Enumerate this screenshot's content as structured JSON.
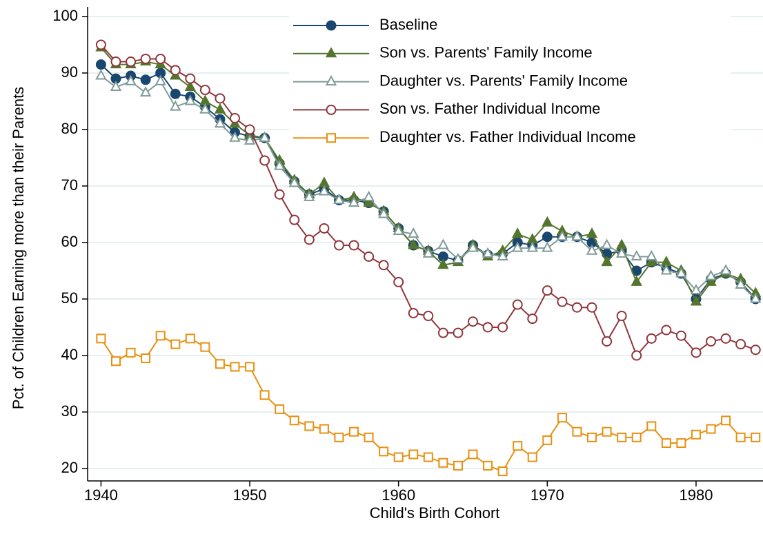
{
  "chart_data": {
    "type": "line",
    "x_label": "Child's Birth Cohort",
    "y_label": "Pct. of Children Earning more than their Parents",
    "x": [
      1940,
      1941,
      1942,
      1943,
      1944,
      1945,
      1946,
      1947,
      1948,
      1949,
      1950,
      1951,
      1952,
      1953,
      1954,
      1955,
      1956,
      1957,
      1958,
      1959,
      1960,
      1961,
      1962,
      1963,
      1964,
      1965,
      1966,
      1967,
      1968,
      1969,
      1970,
      1971,
      1972,
      1973,
      1974,
      1975,
      1976,
      1977,
      1978,
      1979,
      1980,
      1981,
      1982,
      1983,
      1984
    ],
    "xlim": [
      1939.1,
      1984.5
    ],
    "xticks": [
      1940,
      1950,
      1960,
      1970,
      1980
    ],
    "ylim": [
      17.8,
      101.7
    ],
    "yticks": [
      20,
      30,
      40,
      50,
      60,
      70,
      80,
      90,
      100
    ],
    "grid": true,
    "legend": "top",
    "series": [
      {
        "name": "Baseline",
        "color": "#1a476f",
        "marker": "circle-filled",
        "values": [
          91.5,
          89,
          89.5,
          88.8,
          90,
          86.3,
          85.8,
          84,
          81.8,
          79.5,
          78.8,
          78.5,
          74,
          70.8,
          68.5,
          69.5,
          67.5,
          67.5,
          67,
          65.5,
          62.5,
          59.5,
          58.5,
          57.5,
          56.8,
          59.5,
          57.8,
          58,
          60,
          59.5,
          61,
          61,
          61,
          60,
          58,
          58.5,
          55,
          56.5,
          55.5,
          54.5,
          50,
          53.5,
          54.5,
          53,
          50
        ]
      },
      {
        "name": "Son vs. Parents' Family Income",
        "color": "#55752f",
        "marker": "triangle-filled",
        "values": [
          94.5,
          91.5,
          91.5,
          92,
          91.5,
          89.5,
          87.5,
          85,
          83.5,
          81,
          79,
          78.5,
          74.5,
          71,
          68.5,
          70.5,
          67.5,
          68,
          67,
          65.5,
          62.5,
          59.5,
          58.5,
          56,
          56.5,
          59.5,
          57.5,
          58.5,
          61.5,
          60.5,
          63.5,
          62,
          61,
          61.5,
          56.5,
          59.5,
          53,
          56.5,
          56.5,
          55,
          49.5,
          53,
          54.5,
          53.5,
          51
        ]
      },
      {
        "name": "Daughter vs. Parents' Family Income",
        "color": "#7f9a98",
        "marker": "triangle-hollow",
        "values": [
          89.5,
          87.5,
          88.5,
          86.5,
          88.5,
          84,
          85,
          83.5,
          81,
          78.5,
          78,
          78.5,
          73.5,
          70.5,
          68,
          69,
          67.5,
          67,
          68,
          65,
          62,
          61.5,
          58,
          59.5,
          57,
          59,
          58,
          57.5,
          59,
          59,
          59,
          61,
          61,
          58.5,
          59.5,
          58,
          57.5,
          57.5,
          55,
          54.5,
          51.5,
          54,
          55,
          52.5,
          50
        ]
      },
      {
        "name": "Son vs. Father Individual Income",
        "color": "#90353b",
        "marker": "circle-hollow",
        "values": [
          95,
          92,
          92,
          92.5,
          92.5,
          90.5,
          89,
          87,
          85.5,
          82,
          80,
          74.5,
          68.5,
          64,
          60.5,
          62.5,
          59.5,
          59.5,
          57.5,
          56,
          53,
          47.5,
          47,
          44,
          44,
          46,
          45,
          45,
          49,
          46.5,
          51.5,
          49.5,
          48.5,
          48.5,
          42.5,
          47,
          40,
          43,
          44.5,
          43.5,
          40.5,
          42.5,
          43,
          42,
          41
        ]
      },
      {
        "name": "Daughter vs. Father Individual Income",
        "color": "#e8900f",
        "marker": "square-hollow",
        "values": [
          43,
          39,
          40.5,
          39.5,
          43.5,
          42,
          43,
          41.5,
          38.5,
          38,
          38,
          33,
          30.5,
          28.5,
          27.5,
          27,
          25.5,
          26.5,
          25.5,
          23,
          22,
          22.5,
          22,
          21,
          20.5,
          22.5,
          20.5,
          19.5,
          24,
          22,
          25,
          29,
          26.5,
          25.5,
          26.5,
          25.5,
          25.5,
          27.5,
          24.5,
          24.5,
          26,
          27,
          28.5,
          25.5,
          25.5
        ]
      }
    ]
  }
}
